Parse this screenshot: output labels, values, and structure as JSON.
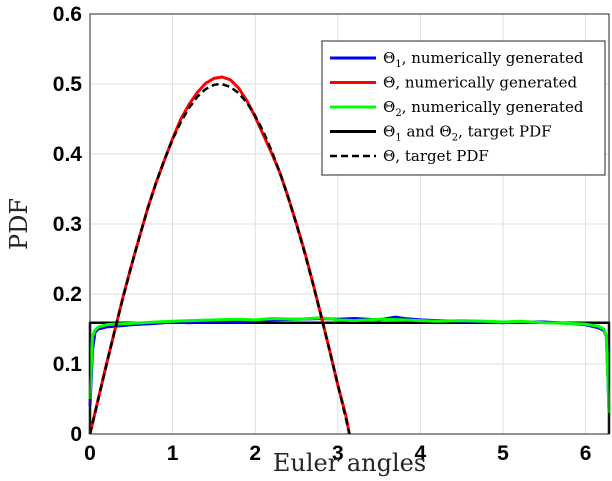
{
  "chart_data": {
    "type": "line",
    "xlabel": "Euler angles",
    "ylabel": "PDF",
    "xlim": [
      0,
      6.2832
    ],
    "ylim": [
      0,
      0.6
    ],
    "xticks": [
      "0",
      "1",
      "2",
      "3",
      "4",
      "5",
      "6"
    ],
    "yticks": [
      "0",
      "0.1",
      "0.2",
      "0.3",
      "0.4",
      "0.5",
      "0.6"
    ],
    "grid": true,
    "legend_position": "top-right",
    "series": [
      {
        "key": "theta1_num",
        "name": "Θ1, numerically generated",
        "legend_main": "Θ",
        "legend_sub": "1",
        "legend_rest": ", numerically generated",
        "color": "#0000ff",
        "style": "solid",
        "x": [
          0,
          0.03,
          0.06,
          0.1,
          0.2,
          0.3,
          0.5,
          0.8,
          1.0,
          1.2,
          1.5,
          1.8,
          2.0,
          2.2,
          2.5,
          2.8,
          3.0,
          3.2,
          3.5,
          3.7,
          3.8,
          4.0,
          4.2,
          4.5,
          4.8,
          5.0,
          5.2,
          5.5,
          5.8,
          6.0,
          6.15,
          6.22,
          6.25,
          6.27,
          6.2832
        ],
        "y": [
          0.04,
          0.12,
          0.145,
          0.15,
          0.153,
          0.154,
          0.156,
          0.158,
          0.16,
          0.159,
          0.161,
          0.16,
          0.162,
          0.163,
          0.164,
          0.165,
          0.164,
          0.165,
          0.163,
          0.167,
          0.165,
          0.163,
          0.162,
          0.161,
          0.16,
          0.159,
          0.16,
          0.16,
          0.158,
          0.156,
          0.152,
          0.148,
          0.14,
          0.08,
          0.03
        ]
      },
      {
        "key": "theta_num",
        "name": "Θ, numerically generated",
        "legend_main": "Θ",
        "legend_sub": "",
        "legend_rest": ", numerically generated",
        "color": "#ff0000",
        "style": "solid",
        "x": [
          0,
          0.1,
          0.2,
          0.3,
          0.4,
          0.5,
          0.6,
          0.7,
          0.8,
          0.9,
          1.0,
          1.1,
          1.2,
          1.3,
          1.4,
          1.5,
          1.6,
          1.7,
          1.8,
          1.9,
          2.0,
          2.1,
          2.2,
          2.3,
          2.4,
          2.5,
          2.6,
          2.7,
          2.8,
          2.9,
          3.0,
          3.1,
          3.14
        ],
        "y": [
          0.0,
          0.05,
          0.1,
          0.148,
          0.196,
          0.24,
          0.282,
          0.323,
          0.359,
          0.391,
          0.422,
          0.45,
          0.471,
          0.488,
          0.501,
          0.508,
          0.51,
          0.506,
          0.494,
          0.476,
          0.453,
          0.427,
          0.401,
          0.373,
          0.338,
          0.3,
          0.26,
          0.215,
          0.168,
          0.12,
          0.07,
          0.025,
          0.0
        ]
      },
      {
        "key": "theta2_num",
        "name": "Θ2, numerically generated",
        "legend_main": "Θ",
        "legend_sub": "2",
        "legend_rest": ", numerically generated",
        "color": "#00ff00",
        "style": "solid",
        "x": [
          0,
          0.03,
          0.06,
          0.1,
          0.2,
          0.3,
          0.5,
          0.8,
          1.0,
          1.2,
          1.5,
          1.8,
          2.0,
          2.2,
          2.5,
          2.8,
          3.0,
          3.2,
          3.5,
          3.8,
          4.0,
          4.2,
          4.5,
          4.8,
          5.0,
          5.2,
          5.5,
          5.8,
          6.0,
          6.15,
          6.22,
          6.25,
          6.27,
          6.2832
        ],
        "y": [
          0.05,
          0.14,
          0.148,
          0.153,
          0.156,
          0.157,
          0.158,
          0.16,
          0.161,
          0.162,
          0.163,
          0.164,
          0.163,
          0.165,
          0.164,
          0.166,
          0.163,
          0.162,
          0.164,
          0.163,
          0.162,
          0.161,
          0.162,
          0.161,
          0.16,
          0.161,
          0.159,
          0.158,
          0.157,
          0.154,
          0.15,
          0.14,
          0.08,
          0.03
        ]
      },
      {
        "key": "theta12_target",
        "name": "Θ1 and Θ2, target PDF",
        "legend_main": "Θ",
        "legend_sub": "1",
        "legend_rest": " and Θ",
        "legend_sub2": "2",
        "legend_rest2": ", target PDF",
        "color": "#000000",
        "style": "solid",
        "x": [
          0,
          0,
          6.2832,
          6.2832
        ],
        "y": [
          0,
          0.159,
          0.159,
          0
        ]
      },
      {
        "key": "theta_target",
        "name": "Θ, target PDF",
        "legend_main": "Θ",
        "legend_sub": "",
        "legend_rest": ", target PDF",
        "color": "#000000",
        "style": "dashed",
        "x": [
          0,
          0.1,
          0.2,
          0.3,
          0.4,
          0.5,
          0.6,
          0.7,
          0.8,
          0.9,
          1.0,
          1.1,
          1.2,
          1.3,
          1.4,
          1.5,
          1.5708,
          1.6,
          1.7,
          1.8,
          1.9,
          2.0,
          2.1,
          2.2,
          2.3,
          2.4,
          2.5,
          2.6,
          2.7,
          2.8,
          2.9,
          3.0,
          3.1,
          3.1416
        ],
        "y": [
          0.0,
          0.0499,
          0.0993,
          0.1478,
          0.1947,
          0.2397,
          0.2823,
          0.3221,
          0.3587,
          0.3917,
          0.4207,
          0.4456,
          0.466,
          0.4818,
          0.4927,
          0.4987,
          0.5,
          0.4998,
          0.4958,
          0.4869,
          0.4732,
          0.4546,
          0.4316,
          0.4042,
          0.3728,
          0.3377,
          0.2992,
          0.2578,
          0.2137,
          0.1675,
          0.1196,
          0.0706,
          0.0208,
          0.0
        ]
      }
    ]
  }
}
